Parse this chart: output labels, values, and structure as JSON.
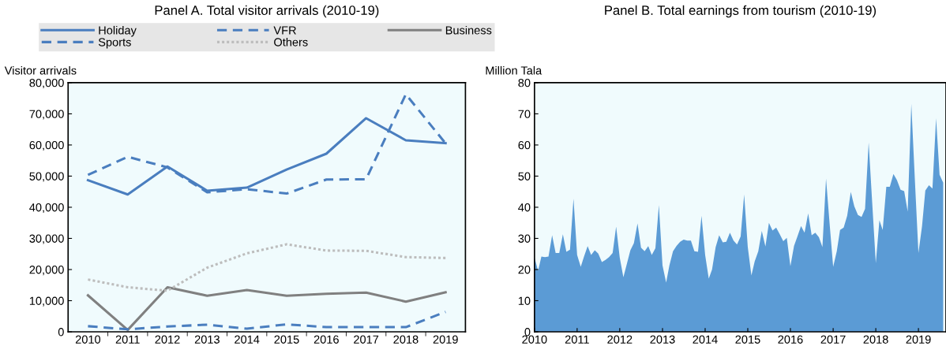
{
  "chart_data": [
    {
      "type": "line",
      "title": "Panel A. Total visitor arrivals (2010-19)",
      "ylabel": "Visitor arrivals",
      "categories": [
        "2010",
        "2011",
        "2012",
        "2013",
        "2014",
        "2015",
        "2016",
        "2017",
        "2018",
        "2019"
      ],
      "ylim": [
        0,
        80000
      ],
      "yticks": [
        {
          "value": 0,
          "label": "0"
        },
        {
          "value": 10000,
          "label": "10,000"
        },
        {
          "value": 20000,
          "label": "20,000"
        },
        {
          "value": 30000,
          "label": "30,000"
        },
        {
          "value": 40000,
          "label": "40,000"
        },
        {
          "value": 50000,
          "label": "50,000"
        },
        {
          "value": 60000,
          "label": "60,000"
        },
        {
          "value": 70000,
          "label": "70,000"
        },
        {
          "value": 80000,
          "label": "80,000"
        }
      ],
      "grid": false,
      "legend": "top",
      "marker": "none",
      "series": [
        {
          "name": "Holiday",
          "color": "#4a7ebf",
          "line_style": "solid",
          "values": [
            48700,
            44100,
            53100,
            45300,
            46300,
            52100,
            57200,
            68600,
            61500,
            60600
          ]
        },
        {
          "name": "VFR",
          "color": "#4a7ebf",
          "line_style": "dashed",
          "values": [
            50400,
            56200,
            52800,
            44800,
            45800,
            44400,
            48900,
            49000,
            76300,
            60500
          ]
        },
        {
          "name": "Business",
          "color": "#808080",
          "line_style": "solid",
          "values": [
            11700,
            600,
            14300,
            11600,
            13400,
            11600,
            12200,
            12600,
            9700,
            12700
          ]
        },
        {
          "name": "Sports",
          "color": "#4a7ebf",
          "line_style": "dashed",
          "values": [
            1800,
            800,
            1700,
            2300,
            1000,
            2400,
            1500,
            1500,
            1500,
            6400
          ]
        },
        {
          "name": "Others",
          "color": "#bdbdbd",
          "line_style": "dotted",
          "values": [
            16800,
            14300,
            13200,
            20600,
            25200,
            28100,
            26100,
            26000,
            24000,
            23700
          ]
        }
      ]
    },
    {
      "type": "area",
      "title": "Panel B. Total earnings from tourism (2010-19)",
      "ylabel": "Million Tala",
      "xlim": [
        "2010-01-01",
        "2019-08-25"
      ],
      "xticks": [
        "2010",
        "2011",
        "2012",
        "2013",
        "2014",
        "2015",
        "2016",
        "2017",
        "2018",
        "2019"
      ],
      "ylim": [
        0,
        80
      ],
      "yticks": [
        0,
        10,
        20,
        30,
        40,
        50,
        60,
        70,
        80
      ],
      "grid": false,
      "legend": false,
      "series": [
        {
          "color": "#5b9bd5",
          "values": [
            23.8,
            19.6,
            24.2,
            24.0,
            24.2,
            31.0,
            25.3,
            25.3,
            31.3,
            25.7,
            26.4,
            42.8,
            24.7,
            20.9,
            24.2,
            27.5,
            24.7,
            26.2,
            25.1,
            22.4,
            23.1,
            24.0,
            25.3,
            33.8,
            23.8,
            17.5,
            21.7,
            26.2,
            28.5,
            34.8,
            27.0,
            25.9,
            27.5,
            24.7,
            26.8,
            40.7,
            21.3,
            15.8,
            21.3,
            25.9,
            27.6,
            28.9,
            29.6,
            29.3,
            29.3,
            25.9,
            25.7,
            37.3,
            24.7,
            17.1,
            20.0,
            27.2,
            31.0,
            28.7,
            28.9,
            31.8,
            29.3,
            28.0,
            30.6,
            44.1,
            27.2,
            18.1,
            22.6,
            25.9,
            32.4,
            27.4,
            35.0,
            32.5,
            33.5,
            31.4,
            29.1,
            30.2,
            21.1,
            27.6,
            30.6,
            34.0,
            31.8,
            38.0,
            31.0,
            31.8,
            30.4,
            27.2,
            49.2,
            35.0,
            20.9,
            25.9,
            32.7,
            33.5,
            37.3,
            44.9,
            40.3,
            37.5,
            36.9,
            39.5,
            60.8,
            41.6,
            22.1,
            35.8,
            32.7,
            46.6,
            46.6,
            50.7,
            48.7,
            45.6,
            45.2,
            38.6,
            73.2,
            49.2,
            25.3,
            34.0,
            45.4,
            47.1,
            46.0,
            68.6,
            50.4,
            47.9
          ]
        }
      ],
      "x": [
        "2010-01",
        "2010-02",
        "2010-03",
        "2010-04",
        "2010-05",
        "2010-06",
        "2010-07",
        "2010-08",
        "2010-09",
        "2010-10",
        "2010-11",
        "2010-12",
        "2011-01",
        "2011-02",
        "2011-03",
        "2011-04",
        "2011-05",
        "2011-06",
        "2011-07",
        "2011-08",
        "2011-09",
        "2011-10",
        "2011-11",
        "2011-12",
        "2012-01",
        "2012-02",
        "2012-03",
        "2012-04",
        "2012-05",
        "2012-06",
        "2012-07",
        "2012-08",
        "2012-09",
        "2012-10",
        "2012-11",
        "2012-12",
        "2013-01",
        "2013-02",
        "2013-03",
        "2013-04",
        "2013-05",
        "2013-06",
        "2013-07",
        "2013-08",
        "2013-09",
        "2013-10",
        "2013-11",
        "2013-12",
        "2014-01",
        "2014-02",
        "2014-03",
        "2014-04",
        "2014-05",
        "2014-06",
        "2014-07",
        "2014-08",
        "2014-09",
        "2014-10",
        "2014-11",
        "2014-12",
        "2015-01",
        "2015-02",
        "2015-03",
        "2015-04",
        "2015-05",
        "2015-06",
        "2015-07",
        "2015-08",
        "2015-09",
        "2015-10",
        "2015-11",
        "2015-12",
        "2016-01",
        "2016-02",
        "2016-03",
        "2016-04",
        "2016-05",
        "2016-06",
        "2016-07",
        "2016-08",
        "2016-09",
        "2016-10",
        "2016-11",
        "2016-12",
        "2017-01",
        "2017-02",
        "2017-03",
        "2017-04",
        "2017-05",
        "2017-06",
        "2017-07",
        "2017-08",
        "2017-09",
        "2017-10",
        "2017-11",
        "2017-12",
        "2018-01",
        "2018-02",
        "2018-03",
        "2018-04",
        "2018-05",
        "2018-06",
        "2018-07",
        "2018-08",
        "2018-09",
        "2018-10",
        "2018-11",
        "2018-12",
        "2019-01",
        "2019-02",
        "2019-03",
        "2019-04",
        "2019-05",
        "2019-06",
        "2019-07",
        "2019-08"
      ]
    }
  ]
}
